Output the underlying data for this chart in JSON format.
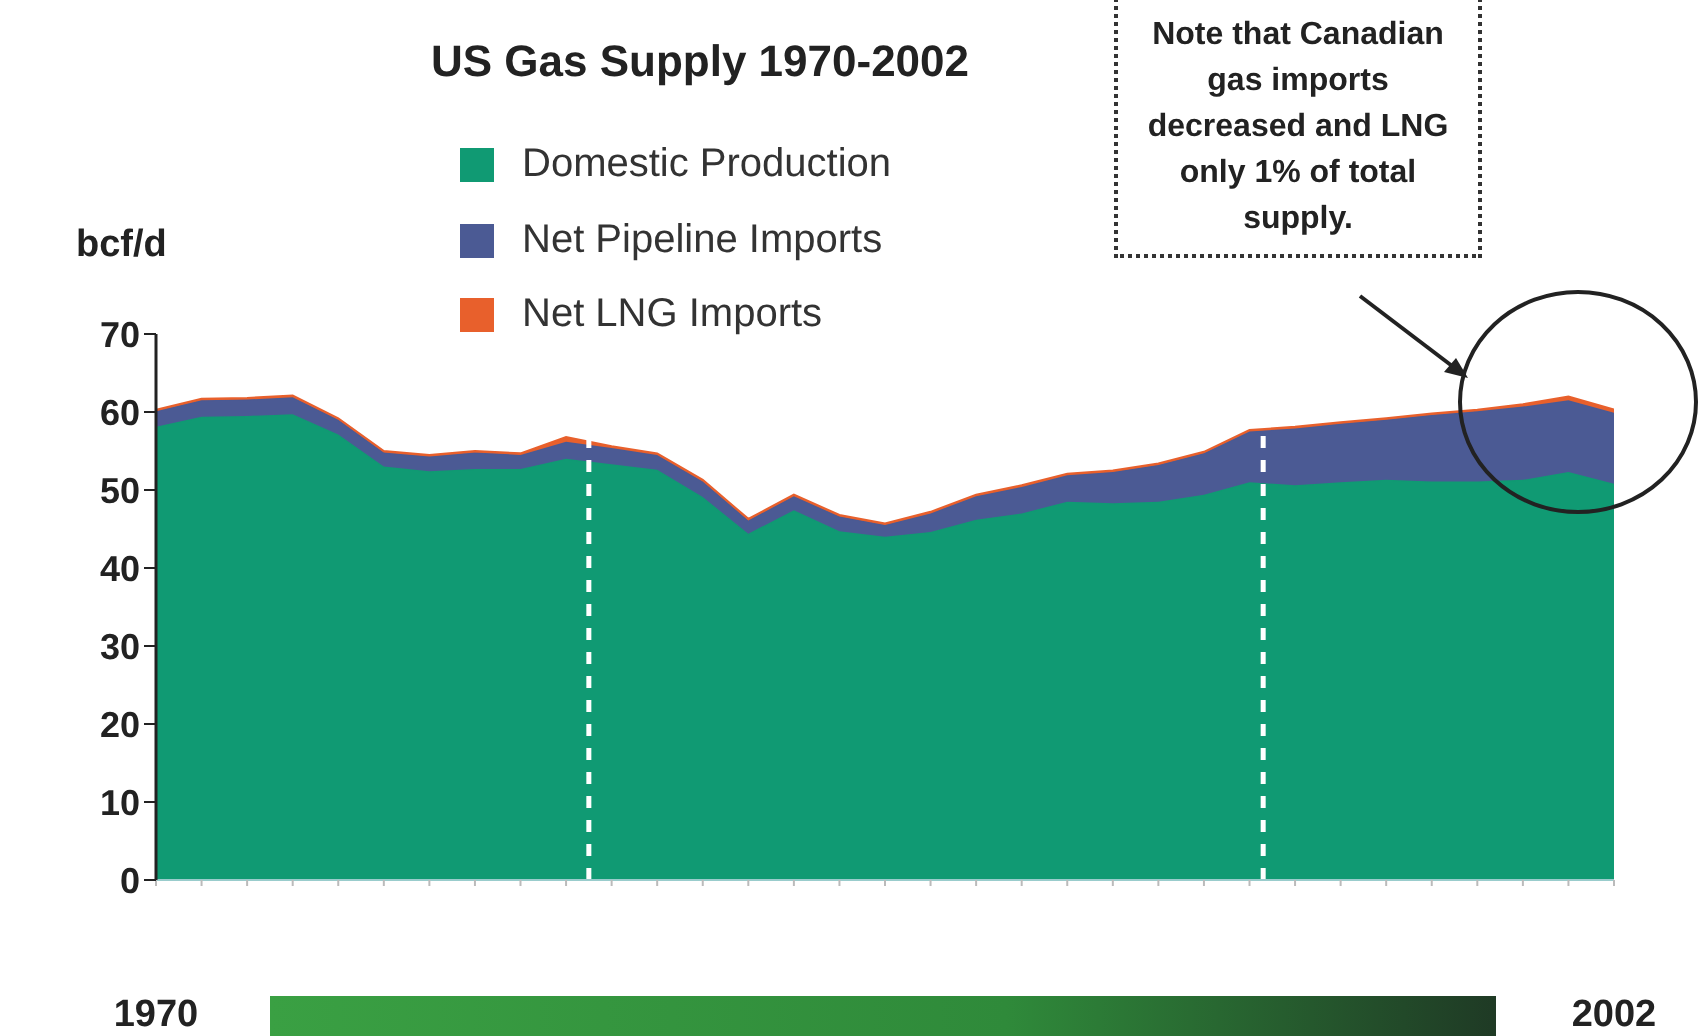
{
  "chart_data": {
    "type": "area",
    "title": "US Gas Supply 1970-2002",
    "ylabel": "bcf/d",
    "stacked": true,
    "legend": "top",
    "x": [
      1970,
      1971,
      1972,
      1973,
      1974,
      1975,
      1976,
      1977,
      1978,
      1979,
      1980,
      1981,
      1982,
      1983,
      1984,
      1985,
      1986,
      1987,
      1988,
      1989,
      1990,
      1991,
      1992,
      1993,
      1994,
      1995,
      1996,
      1997,
      1998,
      1999,
      2000,
      2001,
      2002
    ],
    "series": [
      {
        "name": "Domestic Production",
        "color": "#109a73",
        "values": [
          58.1,
          59.4,
          59.5,
          59.7,
          57.1,
          53.0,
          52.4,
          52.7,
          52.7,
          54.0,
          53.3,
          52.6,
          49.1,
          44.4,
          47.4,
          44.7,
          44.0,
          44.6,
          46.2,
          47.0,
          48.5,
          48.3,
          48.5,
          49.4,
          51.0,
          50.6,
          51.0,
          51.3,
          51.1,
          51.1,
          51.3,
          52.3,
          50.8
        ]
      },
      {
        "name": "Net Pipeline Imports",
        "color": "#4b5a94",
        "values": [
          2.0,
          2.1,
          2.1,
          2.2,
          1.9,
          1.8,
          1.9,
          2.1,
          1.8,
          2.2,
          2.1,
          1.9,
          2.0,
          1.7,
          1.8,
          1.9,
          1.5,
          2.4,
          3.0,
          3.4,
          3.4,
          4.0,
          4.7,
          5.3,
          6.5,
          7.3,
          7.5,
          7.7,
          8.5,
          9.0,
          9.4,
          9.2,
          9.1
        ]
      },
      {
        "name": "Net LNG Imports",
        "color": "#e8602c",
        "values": [
          0.2,
          0.2,
          0.2,
          0.2,
          0.2,
          0.2,
          0.2,
          0.2,
          0.2,
          0.6,
          0.2,
          0.2,
          0.2,
          0.2,
          0.2,
          0.2,
          0.2,
          0.2,
          0.2,
          0.2,
          0.2,
          0.2,
          0.2,
          0.2,
          0.2,
          0.2,
          0.2,
          0.2,
          0.2,
          0.2,
          0.3,
          0.5,
          0.4
        ]
      }
    ],
    "xlim": [
      1970,
      2002
    ],
    "xticks": [
      {
        "value": 1970,
        "label": "1970"
      },
      {
        "value": 1971,
        "label": null
      },
      {
        "value": 1972,
        "label": null
      },
      {
        "value": 1973,
        "label": null
      },
      {
        "value": 1974,
        "label": null
      },
      {
        "value": 1975,
        "label": null
      },
      {
        "value": 1976,
        "label": null
      },
      {
        "value": 1977,
        "label": null
      },
      {
        "value": 1978,
        "label": null
      },
      {
        "value": 1979,
        "label": null
      },
      {
        "value": 1980,
        "label": null
      },
      {
        "value": 1981,
        "label": null
      },
      {
        "value": 1982,
        "label": null
      },
      {
        "value": 1983,
        "label": null
      },
      {
        "value": 1984,
        "label": null
      },
      {
        "value": 1985,
        "label": null
      },
      {
        "value": 1986,
        "label": null
      },
      {
        "value": 1987,
        "label": null
      },
      {
        "value": 1988,
        "label": null
      },
      {
        "value": 1989,
        "label": null
      },
      {
        "value": 1990,
        "label": null
      },
      {
        "value": 1991,
        "label": null
      },
      {
        "value": 1992,
        "label": null
      },
      {
        "value": 1993,
        "label": null
      },
      {
        "value": 1994,
        "label": null
      },
      {
        "value": 1995,
        "label": null
      },
      {
        "value": 1996,
        "label": null
      },
      {
        "value": 1997,
        "label": null
      },
      {
        "value": 1998,
        "label": null
      },
      {
        "value": 1999,
        "label": null
      },
      {
        "value": 2000,
        "label": null
      },
      {
        "value": 2001,
        "label": null
      },
      {
        "value": 2002,
        "label": "2002"
      }
    ],
    "ylim": [
      0,
      70
    ],
    "yticks": [
      0,
      10,
      20,
      30,
      40,
      50,
      60,
      70
    ],
    "ref_lines": [
      {
        "axis": "x",
        "value": 1979.5,
        "color": "#ffffff",
        "line_style": "dashed"
      },
      {
        "axis": "x",
        "value": 1994.3,
        "color": "#ffffff",
        "line_style": "dashed"
      }
    ],
    "annotations": [
      "Note that Canadian gas imports decreased and LNG only 1% of total supply."
    ]
  }
}
